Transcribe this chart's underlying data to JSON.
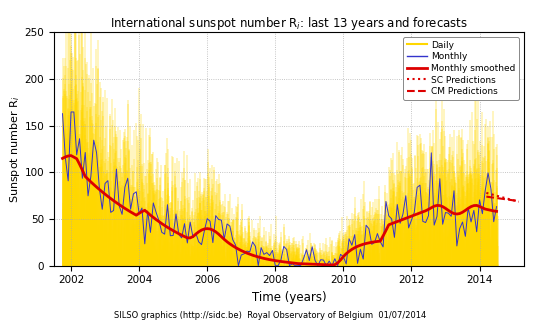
{
  "title": "International sunspot number R$_i$: last 13 years and forecasts",
  "xlabel": "Time (years)",
  "ylabel": "Sunspot number R$_i$",
  "footer": "SILSO graphics (http://sidc.be)  Royal Observatory of Belgium  01/07/2014",
  "ylim": [
    0,
    250
  ],
  "xlim_start": 2001.5,
  "xlim_end": 2015.3,
  "xticks": [
    2002,
    2004,
    2006,
    2008,
    2010,
    2012,
    2014
  ],
  "yticks": [
    0,
    50,
    100,
    150,
    200,
    250
  ],
  "grid_color": "#aaaaaa",
  "bg_color": "#ffffff",
  "daily_color": "#FFD700",
  "monthly_color": "#3333cc",
  "smoothed_color": "#dd0000",
  "pred_color": "#dd0000",
  "legend_entries": [
    "Daily",
    "Monthly",
    "Monthly smoothed",
    "SC Predictions",
    "CM Predictions"
  ]
}
